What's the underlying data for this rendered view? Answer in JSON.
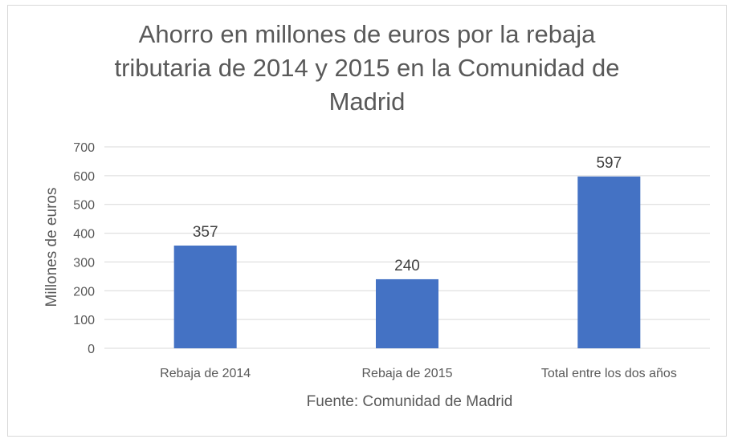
{
  "chart_data": {
    "type": "bar",
    "title_lines": [
      "Ahorro en millones de euros por la rebaja",
      "tributaria de 2014 y 2015 en la Comunidad de",
      "Madrid"
    ],
    "categories": [
      "Rebaja de 2014",
      "Rebaja de 2015",
      "Total entre los dos años"
    ],
    "values": [
      357,
      240,
      597
    ],
    "data_labels": [
      "357",
      "240",
      "597"
    ],
    "ylabel": "Millones de euros",
    "xlabel": "Fuente: Comunidad de Madrid",
    "ylim": [
      0,
      700
    ],
    "yticks": [
      0,
      100,
      200,
      300,
      400,
      500,
      600,
      700
    ],
    "grid": true,
    "bar_color": "#4472c4"
  }
}
